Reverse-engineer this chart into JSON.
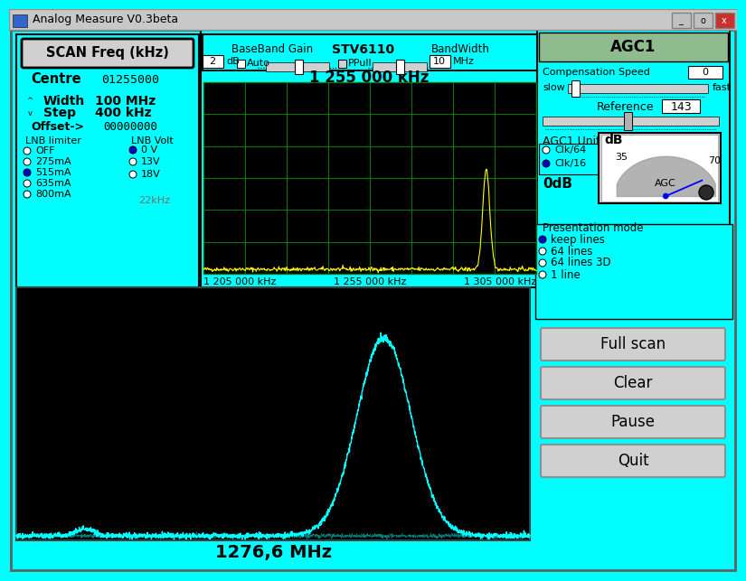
{
  "bg_color": "#00FFFF",
  "title_bar_color": "#C0C0C0",
  "title_text": "Analog Measure V0.3beta",
  "scan_btn_text": "SCAN Freq (kHz)",
  "centre_value": "01255000",
  "width_value": "100 MHz",
  "step_value": "400 kHz",
  "offset_value": "00000000",
  "lnb_limiter_options": [
    "OFF",
    "275mA",
    "515mA",
    "635mA",
    "800mA"
  ],
  "lnb_limiter_selected": 2,
  "lnb_volt_options": [
    "0 V",
    "13V",
    "18V"
  ],
  "lnb_volt_selected": 0,
  "bb_gain_value": "2",
  "bb_gain_unit": "dB",
  "stv_label": "STV6110",
  "bandwidth_value": "10",
  "bandwidth_unit": "MHz",
  "spectrum_title": "1 255 000 kHz",
  "spectrum_bg": "#000000",
  "spectrum_grid_color": "#008000",
  "spectrum_line_color": "#FFFF00",
  "waterfall_bg": "#000000",
  "waterfall_signal_color": "#00FFFF",
  "waterfall_label": "1276,6 MHz",
  "freq_left": "1 205 000 kHz",
  "freq_center": "1 255 000 kHz",
  "freq_right": "1 305 000 kHz",
  "agc1_title": "AGC1",
  "comp_speed_value": "0",
  "reference_value": "143",
  "agc1_unit_label": "AGC1 Unit =  0",
  "clk64": "Clk/64",
  "clk16": "Clk/16",
  "odb_label": "0dB",
  "db_label": "dB",
  "db_val_35": "35",
  "db_val_70": "70",
  "agc_label": "AGC",
  "present_mode_label": "Presentation mode",
  "present_options": [
    "keep lines",
    "64 lines",
    "64 lines 3D",
    "1 line"
  ],
  "present_selected": 0,
  "btn_fullscan": "Full scan",
  "btn_clear": "Clear",
  "btn_pause": "Pause",
  "btn_quit": "Quit"
}
